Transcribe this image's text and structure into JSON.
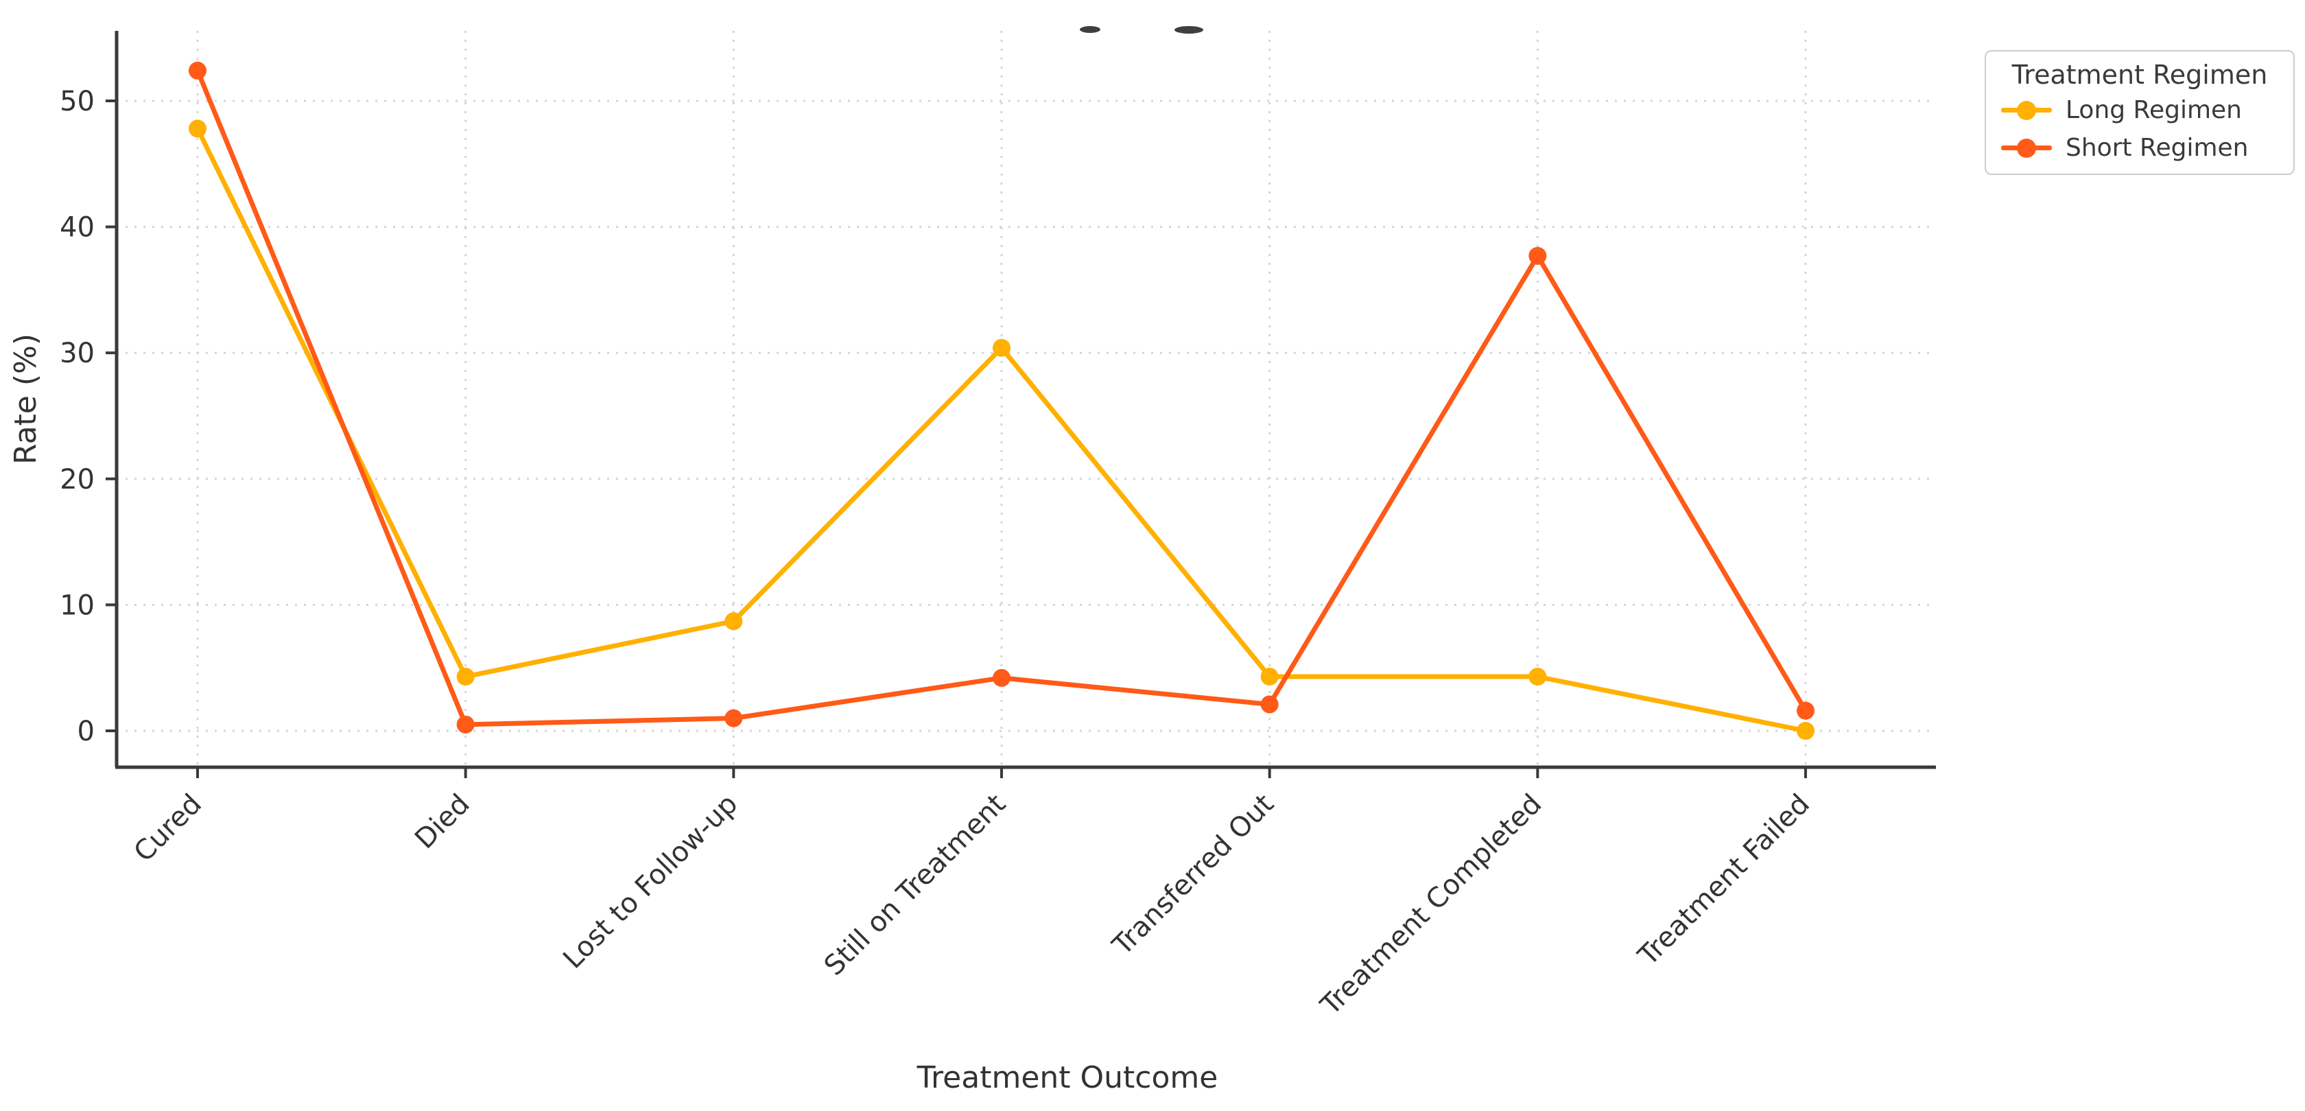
{
  "chart_data": {
    "type": "line",
    "title": "",
    "xlabel": "Treatment Outcome",
    "ylabel": "Rate (%)",
    "categories": [
      "Cured",
      "Died",
      "Lost to Follow-up",
      "Still on Treatment",
      "Transferred Out",
      "Treatment Completed",
      "Treatment Failed"
    ],
    "series": [
      {
        "name": "Long Regimen",
        "color": "#FFB000",
        "values": [
          47.8,
          4.3,
          8.7,
          30.4,
          4.3,
          4.3,
          0.0
        ]
      },
      {
        "name": "Short Regimen",
        "color": "#FF5A17",
        "values": [
          52.4,
          0.5,
          1.0,
          4.2,
          2.1,
          37.7,
          1.6
        ]
      }
    ],
    "y_ticks": [
      0,
      10,
      20,
      30,
      40,
      50
    ],
    "ylim": [
      -3,
      55.6
    ],
    "grid": true,
    "grid_style": "dotted",
    "legend": {
      "title": "Treatment Regimen",
      "position": "upper-right-outside"
    },
    "colors": {
      "axis": "#3a3a3a",
      "tick_label": "#333333",
      "gridline": "#d4d4d4",
      "legend_border": "#cccccc",
      "background": "#ffffff"
    }
  }
}
